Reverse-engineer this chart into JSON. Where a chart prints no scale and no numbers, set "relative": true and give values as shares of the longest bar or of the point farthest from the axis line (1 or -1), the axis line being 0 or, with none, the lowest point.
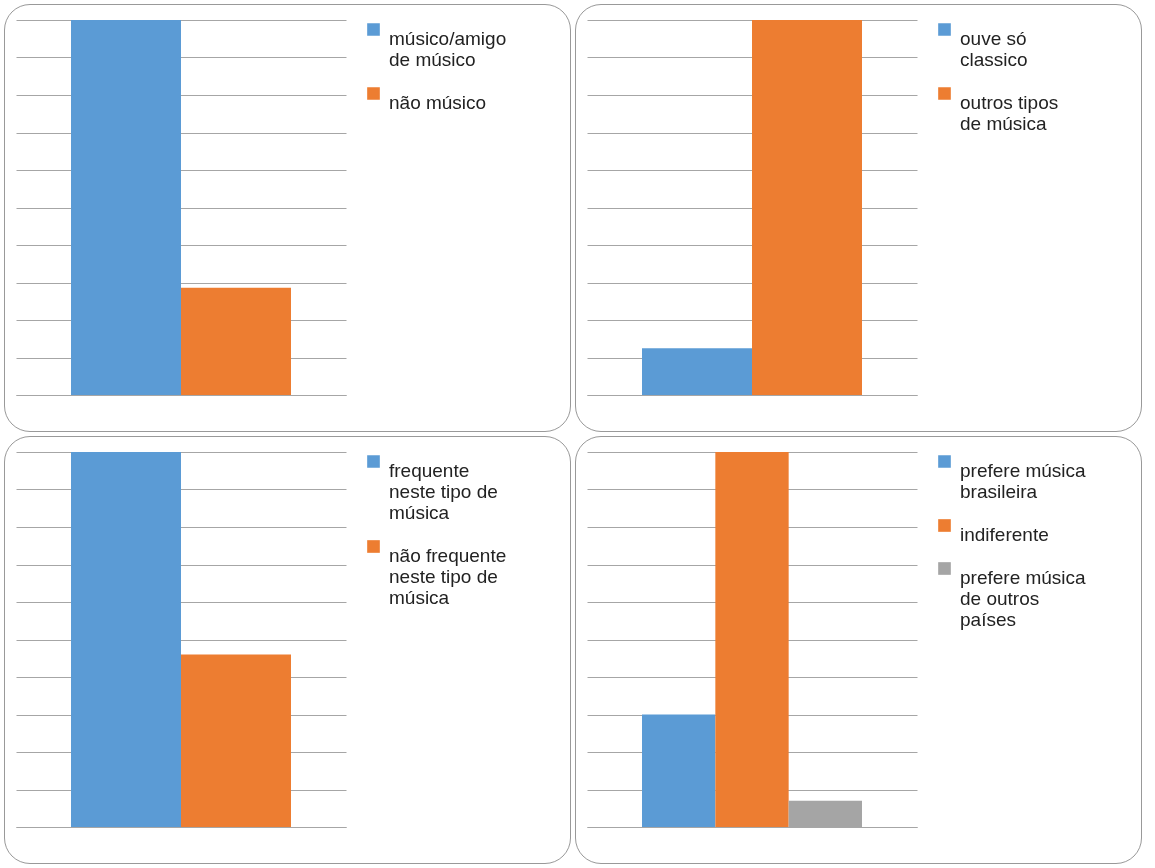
{
  "chart_data": [
    {
      "type": "bar",
      "relative": true,
      "categories": [
        null
      ],
      "grid": "y",
      "legend": "right",
      "series": [
        {
          "name": "músico/amigo de músico",
          "color": "#5b9bd5",
          "values": [
            1
          ]
        },
        {
          "name": "não músico",
          "color": "#ed7d31",
          "values": [
            0.286
          ]
        }
      ]
    },
    {
      "type": "bar",
      "relative": true,
      "categories": [
        null
      ],
      "grid": "y",
      "legend": "right",
      "series": [
        {
          "name": "ouve só classico",
          "color": "#5b9bd5",
          "values": [
            0.125
          ]
        },
        {
          "name": "outros tipos de música",
          "color": "#ed7d31",
          "values": [
            1
          ]
        }
      ]
    },
    {
      "type": "bar",
      "relative": true,
      "categories": [
        null
      ],
      "grid": "y",
      "legend": "right",
      "series": [
        {
          "name": "frequente neste tipo de música",
          "color": "#5b9bd5",
          "values": [
            1
          ]
        },
        {
          "name": "não frequente neste tipo de música",
          "color": "#ed7d31",
          "values": [
            0.46
          ]
        }
      ]
    },
    {
      "type": "bar",
      "relative": true,
      "categories": [
        null
      ],
      "grid": "y",
      "legend": "right",
      "series": [
        {
          "name": "prefere música brasileira",
          "color": "#5b9bd5",
          "values": [
            0.3
          ]
        },
        {
          "name": "indiferente",
          "color": "#ed7d31",
          "values": [
            1
          ]
        },
        {
          "name": "prefere música de outros países",
          "color": "#a5a5a5",
          "values": [
            0.07
          ]
        }
      ]
    }
  ]
}
